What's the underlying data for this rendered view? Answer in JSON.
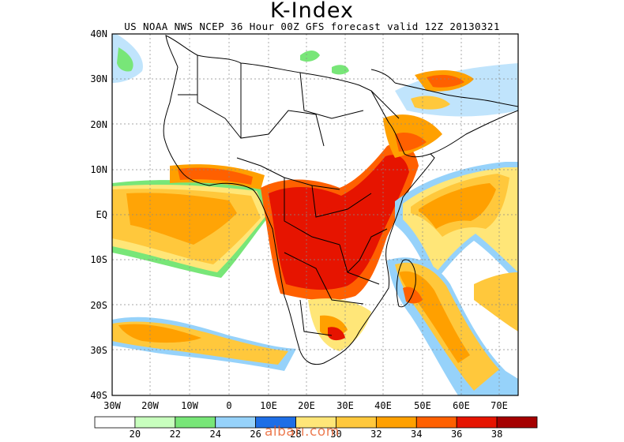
{
  "title": "K-Index",
  "subtitle": "US NOAA NWS NCEP 36 Hour 00Z GFS forecast valid 12Z 20130321",
  "lat_labels": [
    "40N",
    "30N",
    "20N",
    "10N",
    "EQ",
    "10S",
    "20S",
    "30S",
    "40S"
  ],
  "lon_labels": [
    "30W",
    "20W",
    "10W",
    "0",
    "10E",
    "20E",
    "30E",
    "40E",
    "50E",
    "60E",
    "70E"
  ],
  "colorbar": {
    "labels": [
      "20",
      "22",
      "24",
      "26",
      "28",
      "30",
      "32",
      "34",
      "36",
      "38"
    ],
    "colors": [
      "#ffffff",
      "#c8ffbe",
      "#78e678",
      "#96d2fa",
      "#1e6ee6",
      "#ffe678",
      "#ffc83c",
      "#ffa000",
      "#ff6000",
      "#e61400",
      "#a50000"
    ]
  },
  "watermark": "albarı.com"
}
